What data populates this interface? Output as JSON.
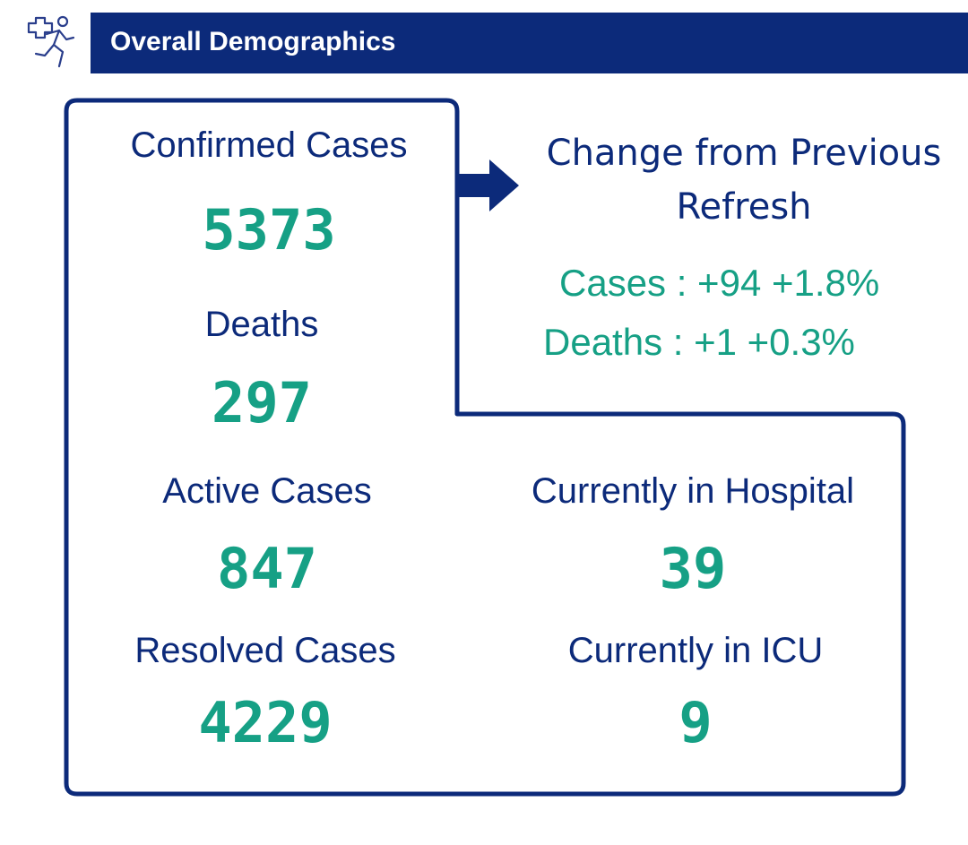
{
  "header": {
    "title": "Overall Demographics",
    "icon": "patient-running-icon"
  },
  "stats": {
    "confirmed": {
      "label": "Confirmed Cases",
      "value": "5373"
    },
    "deaths": {
      "label": "Deaths",
      "value": "297"
    },
    "active": {
      "label": "Active Cases",
      "value": "847"
    },
    "resolved": {
      "label": "Resolved Cases",
      "value": "4229"
    },
    "hospital": {
      "label": "Currently in Hospital",
      "value": "39"
    },
    "icu": {
      "label": "Currently in ICU",
      "value": "9"
    }
  },
  "change": {
    "title_line1": "Change from Previous",
    "title_line2": "Refresh",
    "cases": "Cases : +94 +1.8%",
    "deaths": "Deaths : +1 +0.3%"
  },
  "colors": {
    "navy": "#0c2a7a",
    "green": "#16a085"
  }
}
